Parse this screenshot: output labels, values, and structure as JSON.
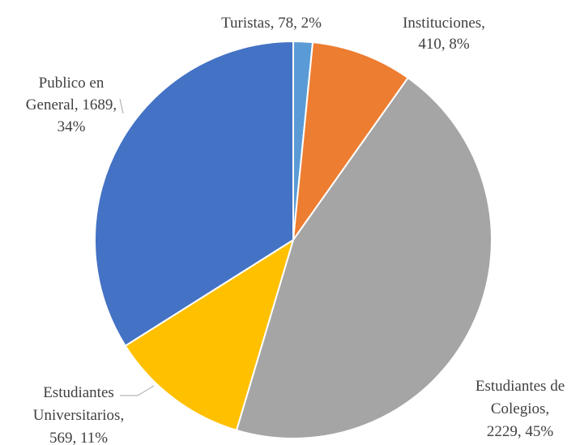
{
  "chart_data": {
    "type": "pie",
    "start_angle_deg": 0,
    "direction": "clockwise",
    "legend": "none",
    "slices": [
      {
        "name": "Turistas",
        "value": 78,
        "percent": 2,
        "color": "#5B9BD5",
        "label_lines": [
          "Turistas, 78, 2%"
        ]
      },
      {
        "name": "Instituciones",
        "value": 410,
        "percent": 8,
        "color": "#ED7D31",
        "label_lines": [
          "Instituciones,",
          "410, 8%"
        ]
      },
      {
        "name": "Estudiantes de Colegios",
        "value": 2229,
        "percent": 45,
        "color": "#A5A5A5",
        "label_lines": [
          "Estudiantes  de",
          "Colegios,",
          "2229, 45%"
        ]
      },
      {
        "name": "Estudiantes Universitarios",
        "value": 569,
        "percent": 11,
        "color": "#FFC000",
        "label_lines": [
          "Estudiantes",
          "Universitarios,",
          "569, 11%"
        ]
      },
      {
        "name": "Publico en General",
        "value": 1689,
        "percent": 34,
        "color": "#4472C4",
        "label_lines": [
          "Publico en",
          "General, 1689,",
          "34%"
        ]
      }
    ]
  }
}
